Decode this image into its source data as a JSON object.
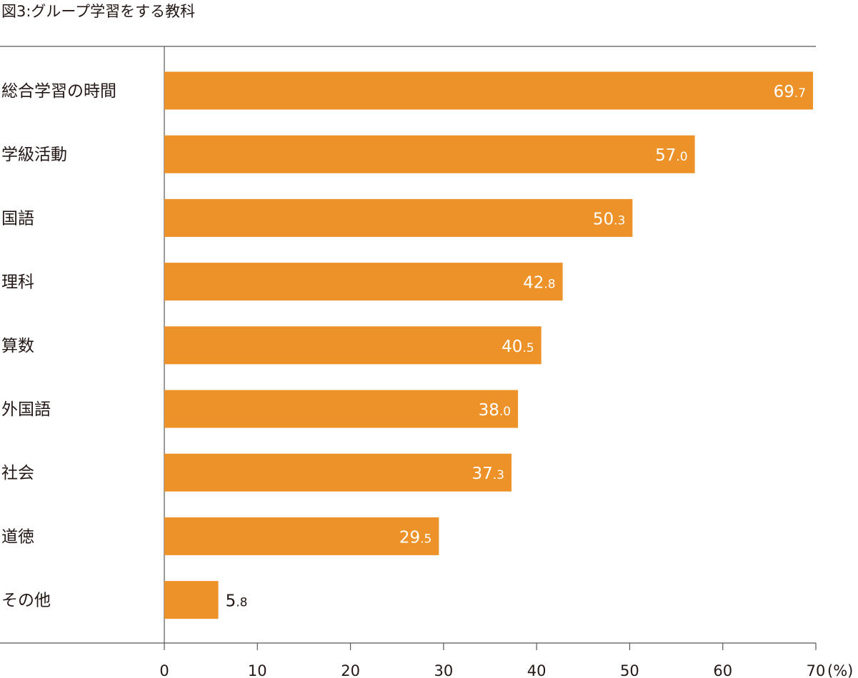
{
  "chart_data": {
    "type": "bar",
    "orientation": "horizontal",
    "title": "図3:グループ学習をする教科",
    "categories": [
      "総合学習の時間",
      "学級活動",
      "国語",
      "理科",
      "算数",
      "外国語",
      "社会",
      "道徳",
      "その他"
    ],
    "values": [
      69.7,
      57.0,
      50.3,
      42.8,
      40.5,
      38.0,
      37.3,
      29.5,
      5.8
    ],
    "value_labels": [
      "69.7",
      "57.0",
      "50.3",
      "42.8",
      "40.5",
      "38.0",
      "37.3",
      "29.5",
      "5.8"
    ],
    "xlim": [
      0,
      70
    ],
    "xticks": [
      0,
      10,
      20,
      30,
      40,
      50,
      60,
      70
    ],
    "x_unit": "(%)",
    "grid": false,
    "legend": "none",
    "bar_color": "#ec9228",
    "inside_label_color": "#ffffff",
    "outside_label_color": "#231815",
    "axis_color": "#595757"
  }
}
